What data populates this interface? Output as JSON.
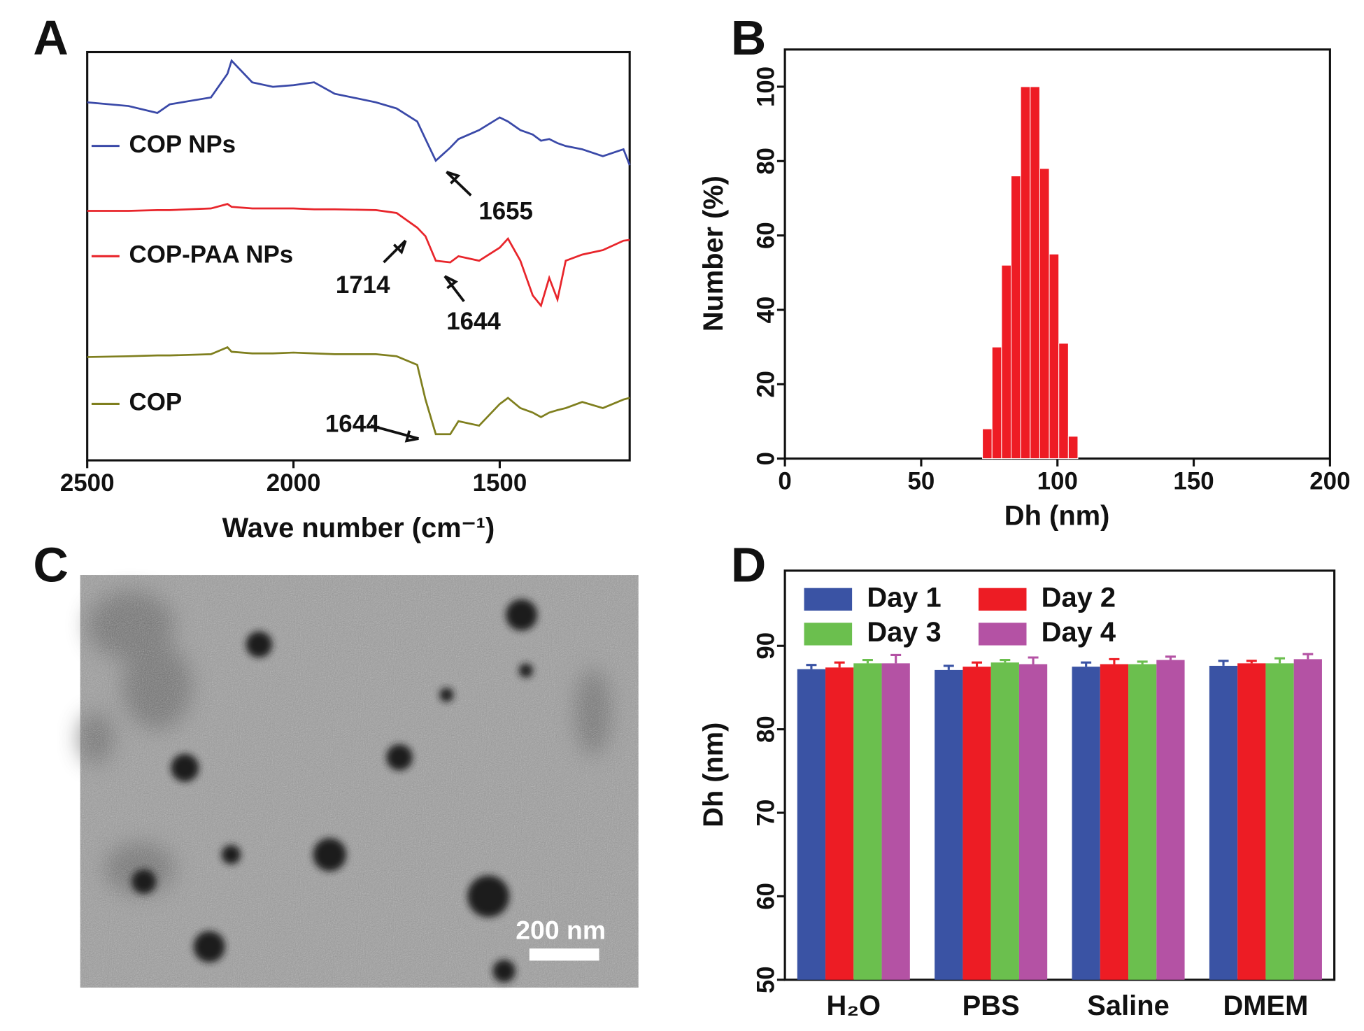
{
  "panel_labels": [
    "A",
    "B",
    "C",
    "D"
  ],
  "image": {
    "scale_bar": "200 nm"
  },
  "chart_data": [
    {
      "type": "line",
      "xlabel": "Wave number (cm⁻¹)",
      "x": [
        2500,
        2400,
        2330,
        2300,
        2200,
        2160,
        2150,
        2100,
        2050,
        2000,
        1950,
        1900,
        1800,
        1750,
        1700,
        1680,
        1655,
        1620,
        1600,
        1550,
        1500,
        1480,
        1450,
        1420,
        1400,
        1380,
        1360,
        1340,
        1300,
        1250,
        1200,
        1185
      ],
      "xlim": [
        2500,
        1185
      ],
      "xticks": [
        2500,
        2000,
        1500
      ],
      "ylim": [
        0,
        100
      ],
      "series": [
        {
          "name": "COP NPs",
          "color": "#3a49a8",
          "values": [
            87.7,
            86.8,
            85.1,
            87.2,
            88.9,
            94.7,
            97.9,
            92.6,
            91.5,
            91.9,
            92.6,
            89.8,
            87.7,
            86.2,
            83.0,
            78.7,
            73.4,
            76.6,
            78.7,
            80.9,
            84.0,
            83.0,
            80.9,
            79.8,
            78.3,
            78.7,
            77.7,
            77.0,
            76.2,
            74.5,
            76.2,
            72.3
          ]
        },
        {
          "name": "COP-PAA NPs",
          "color": "#e8252b",
          "values": [
            61.1,
            61.1,
            61.3,
            61.3,
            61.7,
            62.8,
            62.1,
            61.7,
            61.7,
            61.7,
            61.5,
            61.5,
            61.3,
            60.6,
            57.0,
            54.9,
            48.9,
            48.5,
            50.0,
            48.9,
            52.1,
            54.3,
            48.9,
            40.4,
            37.9,
            44.7,
            39.4,
            48.9,
            50.4,
            51.5,
            53.8,
            54.0
          ]
        },
        {
          "name": "COP",
          "color": "#7f7f1e",
          "values": [
            25.3,
            25.5,
            25.7,
            25.7,
            26.0,
            27.7,
            26.6,
            26.2,
            26.2,
            26.4,
            26.2,
            26.0,
            26.0,
            25.5,
            23.4,
            14.9,
            6.4,
            6.4,
            9.6,
            8.5,
            13.8,
            15.3,
            12.8,
            11.7,
            10.6,
            11.7,
            12.3,
            12.8,
            14.3,
            12.8,
            14.9,
            15.3
          ]
        }
      ],
      "annotations": [
        "1655",
        "1714",
        "1644",
        "1644"
      ]
    },
    {
      "type": "histogram",
      "xlabel": "Dh (nm)",
      "ylabel": "Number (%)",
      "bins": [
        72.5,
        76,
        79.5,
        83,
        86.5,
        90,
        93.5,
        97,
        100.5,
        104,
        107.5
      ],
      "values": [
        8,
        30,
        52,
        76,
        100,
        100,
        78,
        55,
        31,
        6
      ],
      "color": "#ee1c24",
      "xlim": [
        0,
        200
      ],
      "xticks": [
        0,
        50,
        100,
        150,
        200
      ],
      "ylim": [
        0,
        110
      ],
      "yticks": [
        0,
        20,
        40,
        60,
        80,
        100
      ]
    },
    {
      "type": "bar",
      "ylabel": "Dh (nm)",
      "categories": [
        "H₂O",
        "PBS",
        "Saline",
        "DMEM"
      ],
      "series": [
        {
          "name": "Day 1",
          "color": "#3a53a4",
          "values": [
            87.2,
            87.1,
            87.5,
            87.6
          ],
          "errors": [
            0.5,
            0.5,
            0.5,
            0.6
          ]
        },
        {
          "name": "Day 2",
          "color": "#ed1c24",
          "values": [
            87.4,
            87.5,
            87.8,
            87.9
          ],
          "errors": [
            0.6,
            0.5,
            0.6,
            0.3
          ]
        },
        {
          "name": "Day 3",
          "color": "#6bbf4e",
          "values": [
            87.9,
            88.0,
            87.8,
            87.9
          ],
          "errors": [
            0.4,
            0.3,
            0.3,
            0.6
          ]
        },
        {
          "name": "Day 4",
          "color": "#b452a4",
          "values": [
            87.9,
            87.8,
            88.3,
            88.4
          ],
          "errors": [
            1.0,
            0.8,
            0.4,
            0.6
          ]
        }
      ],
      "ylim": [
        50,
        99
      ],
      "yticks": [
        50,
        60,
        70,
        80,
        90
      ]
    }
  ]
}
